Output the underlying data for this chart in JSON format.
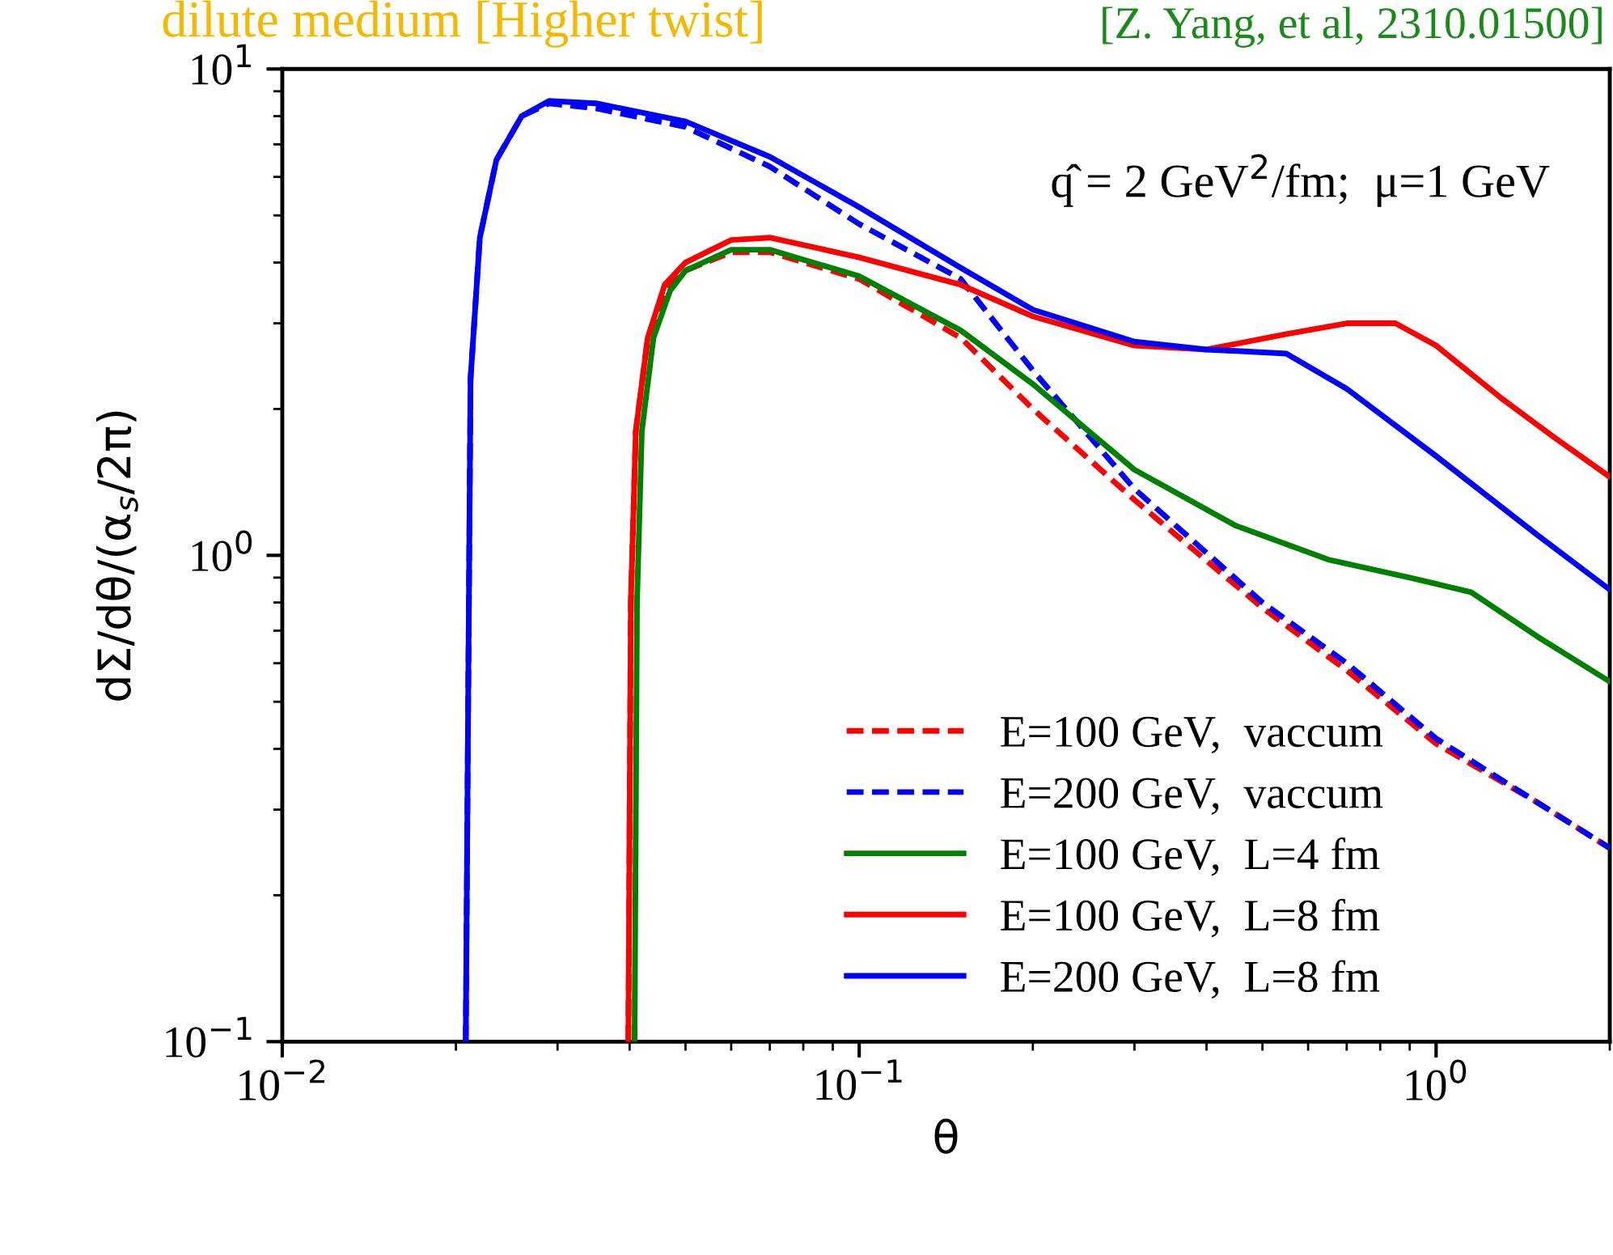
{
  "chart_data": {
    "type": "line",
    "title": "dilute medium [Higher twist]",
    "xlabel": "θ",
    "ylabel": "dΣ/dθ/(α$_{s}$/2π)",
    "annotations": [
      "[Z. Yang, et al, 2310.01500]",
      "q̂ = 2 GeV$^{2}$/fm;  μ=1 GeV"
    ],
    "log": "xy",
    "xlim": [
      0.01,
      2
    ],
    "ylim": [
      0.1,
      10
    ],
    "xticks": [
      {
        "value": 0.01,
        "label": "10$^{−2}$"
      },
      {
        "value": 0.1,
        "label": "10$^{−1}$"
      },
      {
        "value": 1,
        "label": "10$^{0}$"
      }
    ],
    "yticks": [
      {
        "value": 0.1,
        "label": "10$^{−1}$"
      },
      {
        "value": 1,
        "label": "10$^{0}$"
      },
      {
        "value": 10,
        "label": "10$^{1}$"
      }
    ],
    "grid": false,
    "legend": "bottom right",
    "marker": "none",
    "series": [
      {
        "name": "E=100 GeV,  vaccum",
        "color": "#ff0000",
        "line_style": "dashed",
        "x": [
          0.0398,
          0.0402,
          0.041,
          0.043,
          0.046,
          0.05,
          0.06,
          0.07,
          0.1,
          0.15,
          0.2,
          0.3,
          0.5,
          0.7,
          1.0,
          1.5,
          2.0
        ],
        "values": [
          0.1,
          0.8,
          1.8,
          2.8,
          3.5,
          3.85,
          4.2,
          4.2,
          3.7,
          2.8,
          2.0,
          1.3,
          0.78,
          0.58,
          0.41,
          0.31,
          0.25
        ]
      },
      {
        "name": "E=200 GeV,  vaccum",
        "color": "#0000ff",
        "line_style": "dashed",
        "x": [
          0.0208,
          0.021,
          0.0212,
          0.022,
          0.0235,
          0.026,
          0.029,
          0.035,
          0.05,
          0.07,
          0.1,
          0.15,
          0.2,
          0.3,
          0.5,
          0.7,
          1.0,
          1.5,
          2.0
        ],
        "values": [
          0.1,
          0.5,
          2.3,
          4.5,
          6.5,
          8.0,
          8.5,
          8.3,
          7.6,
          6.3,
          4.8,
          3.7,
          2.4,
          1.37,
          0.8,
          0.6,
          0.42,
          0.31,
          0.25
        ]
      },
      {
        "name": "E=100 GeV,  L=4 fm",
        "color": "#008000",
        "line_style": "solid",
        "x": [
          0.0408,
          0.0412,
          0.042,
          0.044,
          0.047,
          0.05,
          0.06,
          0.07,
          0.1,
          0.15,
          0.2,
          0.3,
          0.45,
          0.65,
          0.9,
          1.15,
          1.5,
          2.0
        ],
        "values": [
          0.1,
          0.8,
          1.8,
          2.8,
          3.5,
          3.85,
          4.25,
          4.25,
          3.75,
          2.9,
          2.25,
          1.5,
          1.15,
          0.98,
          0.9,
          0.84,
          0.68,
          0.55
        ]
      },
      {
        "name": "E=100 GeV,  L=8 fm",
        "color": "#ff0000",
        "line_style": "solid",
        "x": [
          0.0398,
          0.0402,
          0.041,
          0.043,
          0.046,
          0.05,
          0.06,
          0.07,
          0.1,
          0.15,
          0.2,
          0.3,
          0.4,
          0.55,
          0.7,
          0.85,
          1.0,
          1.3,
          1.6,
          2.0
        ],
        "values": [
          0.1,
          0.8,
          1.8,
          2.8,
          3.6,
          4.0,
          4.45,
          4.5,
          4.1,
          3.6,
          3.1,
          2.7,
          2.65,
          2.85,
          3.0,
          3.0,
          2.7,
          2.1,
          1.75,
          1.45
        ]
      },
      {
        "name": "E=200 GeV,  L=8 fm",
        "color": "#0000ff",
        "line_style": "solid",
        "x": [
          0.0208,
          0.021,
          0.0212,
          0.022,
          0.0235,
          0.026,
          0.029,
          0.035,
          0.05,
          0.07,
          0.1,
          0.15,
          0.2,
          0.3,
          0.4,
          0.55,
          0.7,
          1.0,
          1.5,
          2.0
        ],
        "values": [
          0.1,
          0.5,
          2.3,
          4.5,
          6.5,
          8.0,
          8.6,
          8.5,
          7.8,
          6.6,
          5.2,
          3.9,
          3.2,
          2.75,
          2.65,
          2.6,
          2.2,
          1.6,
          1.1,
          0.85
        ]
      }
    ]
  }
}
